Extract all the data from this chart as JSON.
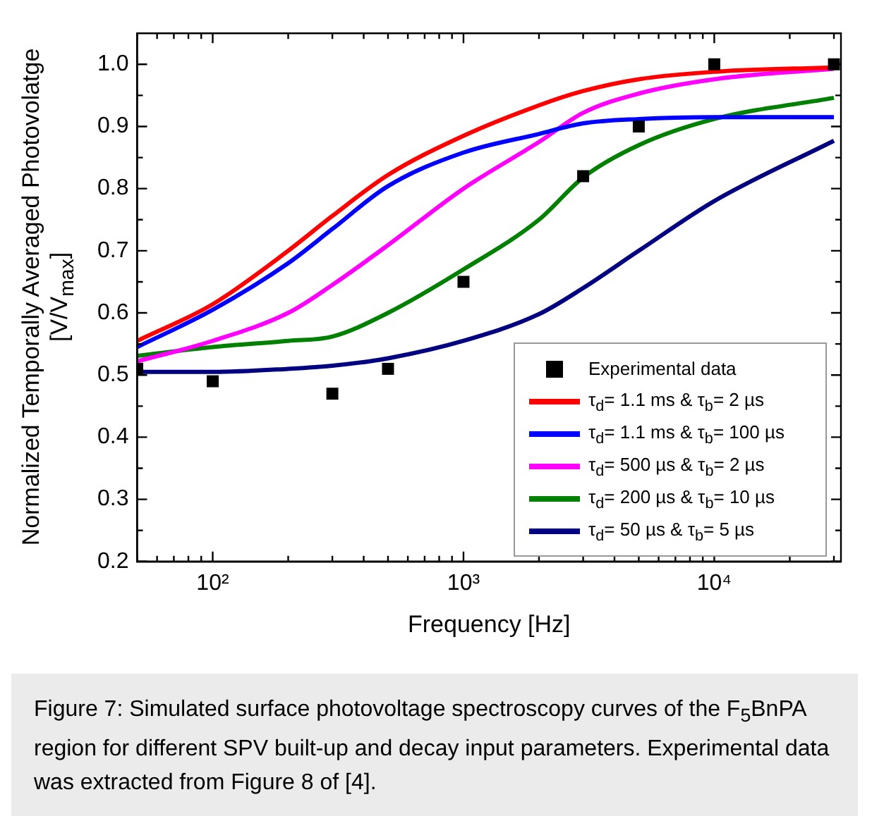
{
  "chart_data": {
    "type": "line",
    "xlabel": "Frequency [Hz]",
    "ylabel": "Normalized Temporally Averaged Photovolatge [V/V$_{max}$]",
    "log": "x",
    "xlim": [
      50,
      32000
    ],
    "xticks": [
      {
        "value": 50,
        "label": null
      },
      {
        "value": 60,
        "label": null
      },
      {
        "value": 70,
        "label": null
      },
      {
        "value": 80,
        "label": null
      },
      {
        "value": 90,
        "label": null
      },
      {
        "value": 100,
        "label": "10²"
      },
      {
        "value": 200,
        "label": null
      },
      {
        "value": 300,
        "label": null
      },
      {
        "value": 400,
        "label": null
      },
      {
        "value": 500,
        "label": null
      },
      {
        "value": 600,
        "label": null
      },
      {
        "value": 700,
        "label": null
      },
      {
        "value": 800,
        "label": null
      },
      {
        "value": 900,
        "label": null
      },
      {
        "value": 1000,
        "label": "10³"
      },
      {
        "value": 2000,
        "label": null
      },
      {
        "value": 3000,
        "label": null
      },
      {
        "value": 4000,
        "label": null
      },
      {
        "value": 5000,
        "label": null
      },
      {
        "value": 6000,
        "label": null
      },
      {
        "value": 7000,
        "label": null
      },
      {
        "value": 8000,
        "label": null
      },
      {
        "value": 9000,
        "label": null
      },
      {
        "value": 10000,
        "label": "10⁴"
      },
      {
        "value": 20000,
        "label": null
      },
      {
        "value": 30000,
        "label": null
      }
    ],
    "ylim": [
      0.2,
      1.05
    ],
    "yticks": [
      0.2,
      {
        "value": 0.25,
        "label": null
      },
      0.3,
      {
        "value": 0.35,
        "label": null
      },
      0.4,
      {
        "value": 0.45,
        "label": null
      },
      0.5,
      {
        "value": 0.55,
        "label": null
      },
      0.6,
      {
        "value": 0.65,
        "label": null
      },
      0.7,
      {
        "value": 0.75,
        "label": null
      },
      0.8,
      {
        "value": 0.85,
        "label": null
      },
      0.9,
      {
        "value": 0.95,
        "label": null
      },
      {
        "value": 1,
        "label": "1.0"
      }
    ],
    "grid": false,
    "legend": "bottom right",
    "series": [
      {
        "name": "Experimental data",
        "type": "scatter",
        "marker": "square",
        "color": "#000000",
        "x": [
          50,
          100,
          300,
          500,
          1000,
          3000,
          5000,
          10000,
          30000
        ],
        "values": [
          0.51,
          0.49,
          0.47,
          0.51,
          0.65,
          0.82,
          0.9,
          1.0,
          1.0
        ]
      },
      {
        "name": "τ$_{d}$= 1.1 ms & τ$_{b}$= 2 µs",
        "type": "line",
        "marker": "none",
        "color": "#ff0000",
        "x": [
          50,
          100,
          200,
          300,
          500,
          1000,
          2000,
          3000,
          5000,
          10000,
          30000
        ],
        "values": [
          0.555,
          0.614,
          0.7,
          0.756,
          0.822,
          0.885,
          0.934,
          0.957,
          0.976,
          0.988,
          0.995
        ]
      },
      {
        "name": "τ$_{d}$= 1.1 ms & τ$_{b}$= 100 µs",
        "type": "line",
        "marker": "none",
        "color": "#0000ff",
        "x": [
          50,
          100,
          200,
          300,
          500,
          1000,
          2000,
          3000,
          5000,
          10000,
          30000
        ],
        "values": [
          0.545,
          0.605,
          0.68,
          0.735,
          0.804,
          0.858,
          0.888,
          0.905,
          0.912,
          0.915,
          0.915
        ]
      },
      {
        "name": "τ$_{d}$= 500 µs & τ$_{b}$= 2 µs",
        "type": "line",
        "marker": "none",
        "color": "#ff00ff",
        "x": [
          50,
          100,
          200,
          300,
          500,
          1000,
          2000,
          3000,
          5000,
          10000,
          30000
        ],
        "values": [
          0.522,
          0.555,
          0.6,
          0.645,
          0.709,
          0.8,
          0.875,
          0.922,
          0.953,
          0.976,
          0.993
        ]
      },
      {
        "name": "τ$_{d}$= 200 µs & τ$_{b}$= 10 µs",
        "type": "line",
        "marker": "none",
        "color": "#008000",
        "x": [
          50,
          100,
          200,
          300,
          500,
          1000,
          2000,
          3000,
          5000,
          10000,
          30000
        ],
        "values": [
          0.531,
          0.545,
          0.555,
          0.562,
          0.6,
          0.67,
          0.75,
          0.818,
          0.87,
          0.912,
          0.946
        ]
      },
      {
        "name": "τ$_{d}$= 50 µs & τ$_{b}$= 5 µs",
        "type": "line",
        "marker": "none",
        "color": "#000080",
        "x": [
          50,
          100,
          200,
          300,
          500,
          1000,
          2000,
          3000,
          5000,
          10000,
          30000
        ],
        "values": [
          0.505,
          0.505,
          0.51,
          0.515,
          0.527,
          0.555,
          0.598,
          0.64,
          0.7,
          0.78,
          0.877
        ]
      }
    ],
    "annotations": [
      "Figure 7: Simulated surface photovoltage spectroscopy curves of the F$_{5}$BnPA region for different SPV built-up and decay input parameters. Experimental data was extracted from Figure 8 of [4]."
    ]
  }
}
